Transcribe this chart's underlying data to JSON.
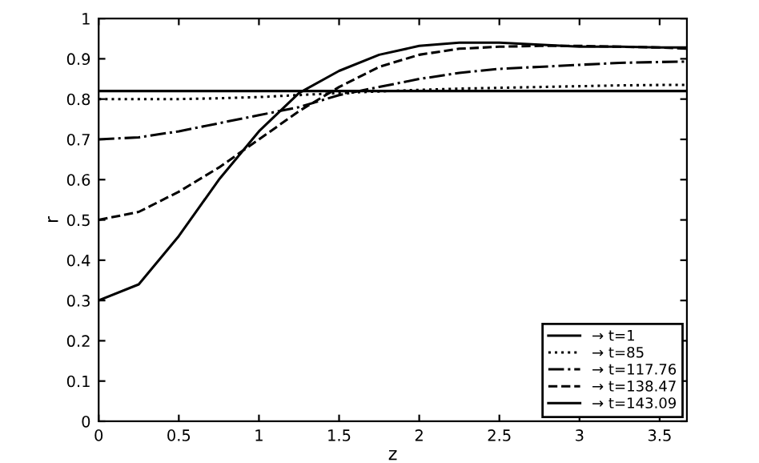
{
  "chart_data": {
    "type": "line",
    "xlabel": "z",
    "ylabel": "r",
    "x": [
      0,
      0.25,
      0.5,
      0.75,
      1,
      1.25,
      1.5,
      1.75,
      2,
      2.25,
      2.5,
      2.75,
      3,
      3.25,
      3.5,
      3.67
    ],
    "series": [
      {
        "name": "→ t=1",
        "color": "#000000",
        "line_style": "solid",
        "values": [
          0.82,
          0.82,
          0.82,
          0.82,
          0.82,
          0.82,
          0.82,
          0.82,
          0.82,
          0.82,
          0.82,
          0.82,
          0.82,
          0.82,
          0.82,
          0.82
        ]
      },
      {
        "name": "→ t=85",
        "color": "#000000",
        "line_style": "dotted",
        "values": [
          0.8,
          0.8,
          0.8,
          0.802,
          0.805,
          0.81,
          0.815,
          0.819,
          0.823,
          0.826,
          0.828,
          0.83,
          0.832,
          0.834,
          0.835,
          0.835
        ]
      },
      {
        "name": "→ t=117.76",
        "color": "#000000",
        "line_style": "dashdot",
        "values": [
          0.7,
          0.705,
          0.72,
          0.74,
          0.76,
          0.78,
          0.81,
          0.83,
          0.85,
          0.865,
          0.875,
          0.88,
          0.885,
          0.89,
          0.892,
          0.893
        ]
      },
      {
        "name": "→ t=138.47",
        "color": "#000000",
        "line_style": "dashed",
        "values": [
          0.5,
          0.52,
          0.57,
          0.63,
          0.7,
          0.77,
          0.83,
          0.88,
          0.91,
          0.925,
          0.93,
          0.932,
          0.932,
          0.93,
          0.928,
          0.925
        ]
      },
      {
        "name": "→ t=143.09",
        "color": "#000000",
        "line_style": "solid",
        "values": [
          0.3,
          0.34,
          0.46,
          0.6,
          0.72,
          0.815,
          0.87,
          0.91,
          0.932,
          0.94,
          0.94,
          0.935,
          0.93,
          0.93,
          0.928,
          0.928
        ]
      }
    ],
    "xlim": [
      0,
      3.67
    ],
    "ylim": [
      0,
      1
    ],
    "xticks": [
      0,
      0.5,
      1,
      1.5,
      2,
      2.5,
      3,
      3.5
    ],
    "yticks": [
      0,
      0.1,
      0.2,
      0.3,
      0.4,
      0.5,
      0.6,
      0.7,
      0.8,
      0.9,
      1
    ],
    "grid": false,
    "legend": "bottom right"
  }
}
